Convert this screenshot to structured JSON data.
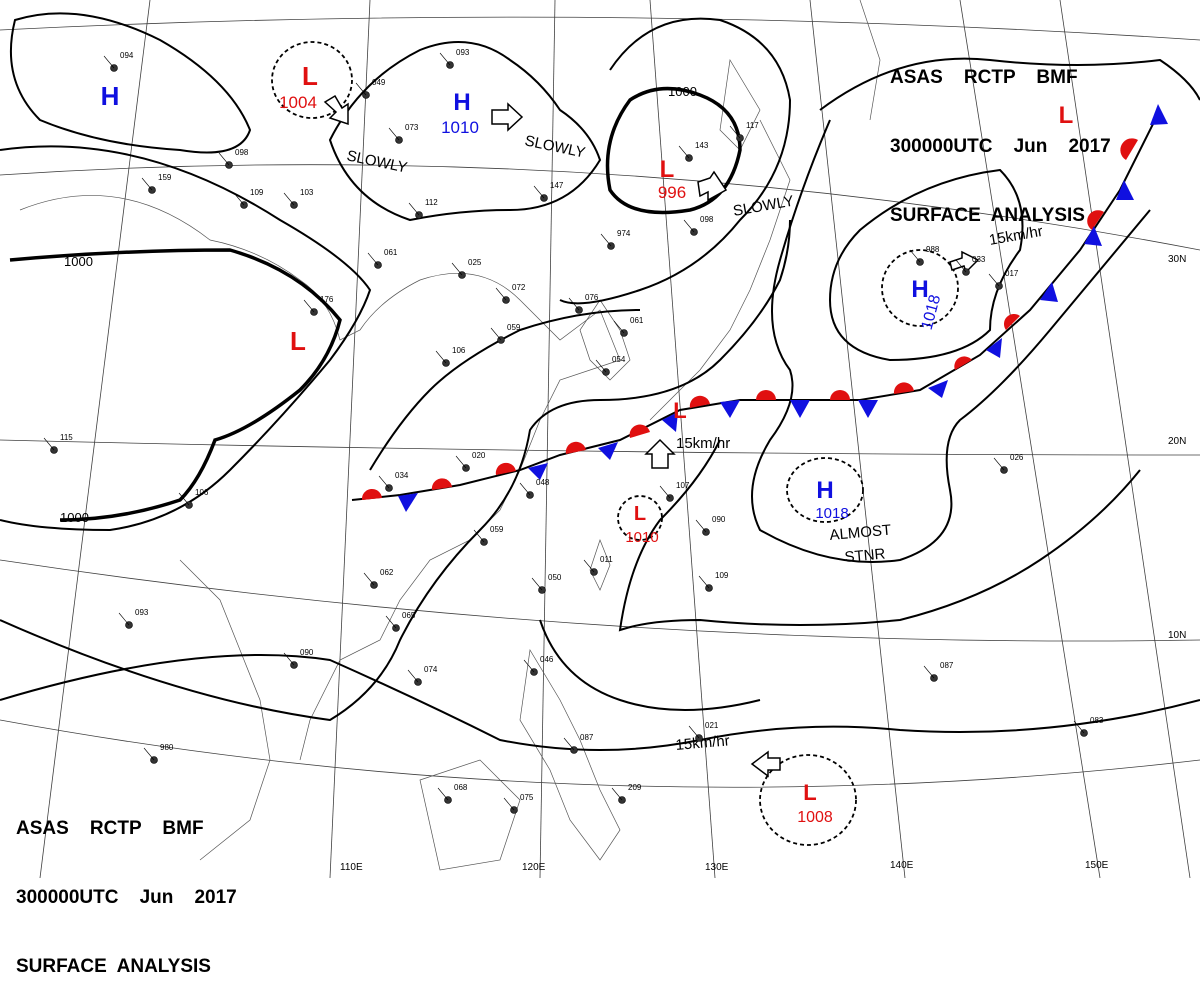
{
  "header_top": {
    "line1": "ASAS    RCTP    BMF",
    "line2": "300000UTC    Jun    2017",
    "line3": "SURFACE  ANALYSIS"
  },
  "header_bottom": {
    "line1": "ASAS    RCTP    BMF",
    "line2": "300000UTC    Jun    2017",
    "line3": "SURFACE  ANALYSIS"
  },
  "pressure_systems": [
    {
      "type": "H",
      "pressure": "",
      "color": "#1010e0"
    },
    {
      "type": "L",
      "pressure": "1004",
      "color": "#e01010"
    },
    {
      "type": "H",
      "pressure": "1010",
      "color": "#1010e0"
    },
    {
      "type": "L",
      "pressure": "996",
      "color": "#e01010"
    },
    {
      "type": "L",
      "pressure": "",
      "color": "#e01010"
    },
    {
      "type": "L",
      "pressure": "",
      "color": "#e01010"
    },
    {
      "type": "H",
      "pressure": "1018",
      "color": "#1010e0"
    },
    {
      "type": "L",
      "pressure": "",
      "color": "#e01010"
    },
    {
      "type": "L",
      "pressure": "1010",
      "color": "#e01010"
    },
    {
      "type": "H",
      "pressure": "1018",
      "color": "#1010e0"
    },
    {
      "type": "L",
      "pressure": "1008",
      "color": "#e01010"
    }
  ],
  "movement_labels": [
    "SLOWLY",
    "SLOWLY",
    "SLOWLY",
    "15km/hr",
    "15km/hr",
    "15km/hr",
    "ALMOST",
    "STNR"
  ],
  "isobar_labels": [
    "1000",
    "1000",
    "1000"
  ],
  "latitude_labels": [
    "30N",
    "20N",
    "10N"
  ],
  "longitude_labels": [
    "110E",
    "120E",
    "130E",
    "140E",
    "150E"
  ],
  "station_numbers": [
    "094",
    "093",
    "049",
    "073",
    "061",
    "025",
    "072",
    "059",
    "106",
    "076",
    "061",
    "020",
    "034",
    "048",
    "059",
    "062",
    "065",
    "050",
    "054",
    "090",
    "074",
    "068",
    "075",
    "093",
    "087",
    "083",
    "090",
    "109",
    "107",
    "046",
    "115",
    "106",
    "143",
    "147",
    "117",
    "098",
    "974",
    "017",
    "988",
    "033",
    "026",
    "021",
    "011",
    "087",
    "209",
    "176",
    "159",
    "109",
    "112",
    "098",
    "103",
    "980"
  ],
  "colors": {
    "high": "#1010e0",
    "low": "#e01010",
    "front_warm": "#e01010",
    "front_cold": "#1010e0"
  }
}
